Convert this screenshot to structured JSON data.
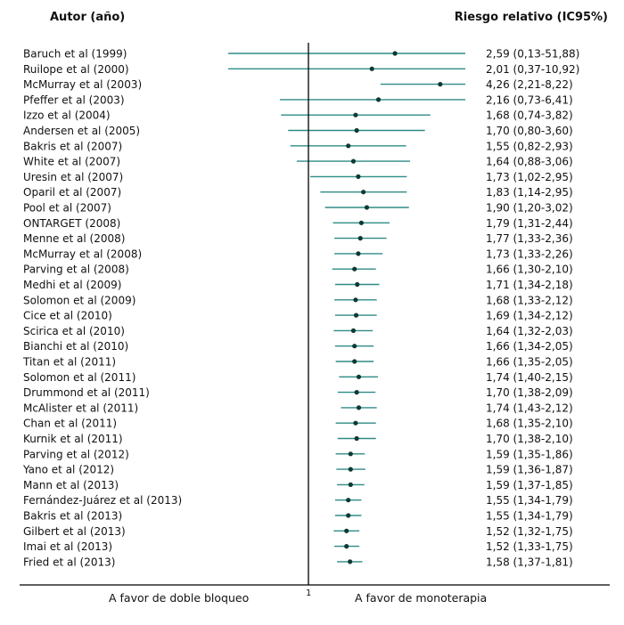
{
  "header": {
    "left": "Autor (año)",
    "right": "Riesgo relativo (IC95%)"
  },
  "footer": {
    "left": "A favor de doble bloqueo",
    "right": "A favor de monoterapia",
    "ref_tick": "1"
  },
  "colors": {
    "ci_line": "#2e8b86",
    "point": "#0a3b33",
    "axis": "#000000"
  },
  "chart_data": {
    "type": "forest",
    "reference_value": 1,
    "columns": [
      "Autor (año)",
      "Riesgo relativo (IC95%)"
    ],
    "rows": [
      {
        "label": "Baruch et al (1999)",
        "text": "2,59 (0,13-51,88)",
        "rr": 2.59,
        "lo": 0.13,
        "hi": 51.88
      },
      {
        "label": "Ruilope et al (2000)",
        "text": "2,01 (0,37-10,92)",
        "rr": 2.01,
        "lo": 0.37,
        "hi": 10.92
      },
      {
        "label": "McMurray et al (2003)",
        "text": "4,26 (2,21-8,22)",
        "rr": 4.26,
        "lo": 2.21,
        "hi": 8.22
      },
      {
        "label": "Pfeffer et al (2003)",
        "text": "2,16 (0,73-6,41)",
        "rr": 2.16,
        "lo": 0.73,
        "hi": 6.41
      },
      {
        "label": "Izzo et al (2004)",
        "text": "1,68 (0,74-3,82)",
        "rr": 1.68,
        "lo": 0.74,
        "hi": 3.82
      },
      {
        "label": "Andersen et al (2005)",
        "text": "1,70 (0,80-3,60)",
        "rr": 1.7,
        "lo": 0.8,
        "hi": 3.6
      },
      {
        "label": "Bakris et al (2007)",
        "text": "1,55 (0,82-2,93)",
        "rr": 1.55,
        "lo": 0.82,
        "hi": 2.93
      },
      {
        "label": "White et al (2007)",
        "text": "1,64 (0,88-3,06)",
        "rr": 1.64,
        "lo": 0.88,
        "hi": 3.06
      },
      {
        "label": "Uresin et al (2007)",
        "text": "1,73 (1,02-2,95)",
        "rr": 1.73,
        "lo": 1.02,
        "hi": 2.95
      },
      {
        "label": "Oparil et al (2007)",
        "text": "1,83 (1,14-2,95)",
        "rr": 1.83,
        "lo": 1.14,
        "hi": 2.95
      },
      {
        "label": "Pool et al (2007)",
        "text": "1,90 (1,20-3,02)",
        "rr": 1.9,
        "lo": 1.2,
        "hi": 3.02
      },
      {
        "label": "ONTARGET (2008)",
        "text": "1,79 (1,31-2,44)",
        "rr": 1.79,
        "lo": 1.31,
        "hi": 2.44
      },
      {
        "label": "Menne et al (2008)",
        "text": "1,77 (1,33-2,36)",
        "rr": 1.77,
        "lo": 1.33,
        "hi": 2.36
      },
      {
        "label": "McMurray et al (2008)",
        "text": "1,73 (1,33-2,26)",
        "rr": 1.73,
        "lo": 1.33,
        "hi": 2.26
      },
      {
        "label": "Parving et al (2008)",
        "text": "1,66 (1,30-2,10)",
        "rr": 1.66,
        "lo": 1.3,
        "hi": 2.1
      },
      {
        "label": "Medhi et al (2009)",
        "text": "1,71 (1,34-2,18)",
        "rr": 1.71,
        "lo": 1.34,
        "hi": 2.18
      },
      {
        "label": "Solomon et al (2009)",
        "text": "1,68 (1,33-2,12)",
        "rr": 1.68,
        "lo": 1.33,
        "hi": 2.12
      },
      {
        "label": "Cice et al (2010)",
        "text": "1,69 (1,34-2,12)",
        "rr": 1.69,
        "lo": 1.34,
        "hi": 2.12
      },
      {
        "label": "Scirica et al (2010)",
        "text": "1,64 (1,32-2,03)",
        "rr": 1.64,
        "lo": 1.32,
        "hi": 2.03
      },
      {
        "label": "Bianchi et al (2010)",
        "text": "1,66 (1,34-2,05)",
        "rr": 1.66,
        "lo": 1.34,
        "hi": 2.05
      },
      {
        "label": "Titan et al (2011)",
        "text": "1,66 (1,35-2,05)",
        "rr": 1.66,
        "lo": 1.35,
        "hi": 2.05
      },
      {
        "label": "Solomon et al (2011)",
        "text": "1,74 (1,40-2,15)",
        "rr": 1.74,
        "lo": 1.4,
        "hi": 2.15
      },
      {
        "label": "Drummond et al (2011)",
        "text": "1,70 (1,38-2,09)",
        "rr": 1.7,
        "lo": 1.38,
        "hi": 2.09
      },
      {
        "label": "McAlister et al (2011)",
        "text": "1,74 (1,43-2,12)",
        "rr": 1.74,
        "lo": 1.43,
        "hi": 2.12
      },
      {
        "label": "Chan et al (2011)",
        "text": "1,68 (1,35-2,10)",
        "rr": 1.68,
        "lo": 1.35,
        "hi": 2.1
      },
      {
        "label": "Kurnik et al (2011)",
        "text": "1,70 (1,38-2,10)",
        "rr": 1.7,
        "lo": 1.38,
        "hi": 2.1
      },
      {
        "label": "Parving et al (2012)",
        "text": "1,59 (1,35-1,86)",
        "rr": 1.59,
        "lo": 1.35,
        "hi": 1.86
      },
      {
        "label": "Yano et al (2012)",
        "text": "1,59 (1,36-1,87)",
        "rr": 1.59,
        "lo": 1.36,
        "hi": 1.87
      },
      {
        "label": "Mann et al (2013)",
        "text": "1,59 (1,37-1,85)",
        "rr": 1.59,
        "lo": 1.37,
        "hi": 1.85
      },
      {
        "label": "Fernández-Juárez et al (2013)",
        "text": "1,55 (1,34-1,79)",
        "rr": 1.55,
        "lo": 1.34,
        "hi": 1.79
      },
      {
        "label": "Bakris et al (2013)",
        "text": "1,55 (1,34-1,79)",
        "rr": 1.55,
        "lo": 1.34,
        "hi": 1.79
      },
      {
        "label": "Gilbert et al (2013)",
        "text": "1,52 (1,32-1,75)",
        "rr": 1.52,
        "lo": 1.32,
        "hi": 1.75
      },
      {
        "label": "Imai  et al (2013)",
        "text": "1,52 (1,33-1,75)",
        "rr": 1.52,
        "lo": 1.33,
        "hi": 1.75
      },
      {
        "label": "Fried et al (2013)",
        "text": "1,58 (1,37-1,81)",
        "rr": 1.58,
        "lo": 1.37,
        "hi": 1.81
      }
    ]
  }
}
